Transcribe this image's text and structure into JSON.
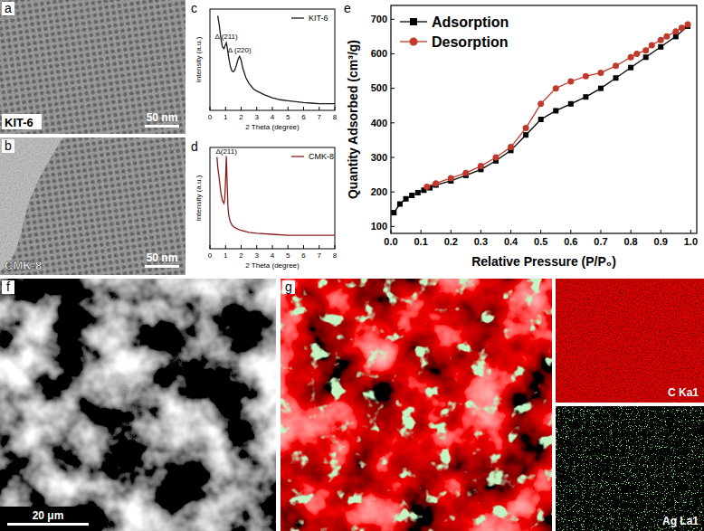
{
  "chart_data": [
    {
      "type": "line",
      "panel_label": "c",
      "x_label": "2 Theta (degree)",
      "y_label": "Intensity (a.u.)",
      "xlim": [
        0,
        8
      ],
      "xticks": [
        0,
        1,
        2,
        3,
        4,
        5,
        6,
        7,
        8
      ],
      "ylim": [
        0,
        105
      ],
      "tick_labels": "x",
      "legend": "upper right",
      "series": [
        {
          "name": "KIT-6",
          "color": "#1a1a1a",
          "x": [
            0.5,
            0.6,
            0.7,
            0.8,
            0.9,
            1.0,
            1.05,
            1.1,
            1.2,
            1.3,
            1.4,
            1.5,
            1.6,
            1.7,
            1.8,
            1.9,
            2.0,
            2.1,
            2.3,
            2.5,
            2.8,
            3.0,
            3.5,
            4,
            4.5,
            5,
            5.5,
            6,
            6.5,
            7,
            7.5,
            8
          ],
          "values": [
            98,
            88,
            75,
            66,
            64,
            68,
            70,
            66,
            55,
            46,
            41,
            40,
            42,
            47,
            53,
            56,
            52,
            44,
            34,
            28,
            22,
            20,
            16,
            13,
            11,
            10,
            9,
            8,
            7.5,
            7,
            7,
            7
          ]
        }
      ],
      "annotations": [
        {
          "text": "Δ (211)",
          "x": 1.05
        },
        {
          "text": "Δ (220)",
          "x": 1.9
        }
      ]
    },
    {
      "type": "line",
      "panel_label": "d",
      "x_label": "2 Theta (degree)",
      "y_label": "Intensity (a.u.)",
      "xlim": [
        0,
        8
      ],
      "xticks": [
        0,
        1,
        2,
        3,
        4,
        5,
        6,
        7,
        8
      ],
      "ylim": [
        0,
        105
      ],
      "tick_labels": "x",
      "legend": "upper right",
      "series": [
        {
          "name": "CMK-8",
          "color": "#8b1a1a",
          "x": [
            0.45,
            0.5,
            0.6,
            0.7,
            0.8,
            0.9,
            0.95,
            1.0,
            1.05,
            1.1,
            1.15,
            1.2,
            1.3,
            1.4,
            1.5,
            1.7,
            2.0,
            2.5,
            3,
            4,
            5,
            6,
            7,
            8
          ],
          "values": [
            95,
            85,
            72,
            58,
            50,
            47,
            52,
            70,
            96,
            70,
            45,
            35,
            28,
            25,
            23,
            21,
            19,
            17,
            16,
            15,
            14,
            14,
            14,
            14
          ]
        }
      ],
      "annotations": [
        {
          "text": "Δ(211)",
          "x": 1.05
        }
      ]
    },
    {
      "type": "line",
      "panel_label": "e",
      "x_label": "Relative Pressure (P/P₀)",
      "y_label": "Quantity Adsorbed (cm³/g)",
      "xlim": [
        0,
        1.02
      ],
      "ylim": [
        80,
        740
      ],
      "xticks": [
        {
          "value": 0,
          "label": "0.0"
        },
        {
          "value": 0.1,
          "label": "0.1"
        },
        {
          "value": 0.2,
          "label": "0.2"
        },
        {
          "value": 0.3,
          "label": "0.3"
        },
        {
          "value": 0.4,
          "label": "0.4"
        },
        {
          "value": 0.5,
          "label": "0.5"
        },
        {
          "value": 0.6,
          "label": "0.6"
        },
        {
          "value": 0.7,
          "label": "0.7"
        },
        {
          "value": 0.8,
          "label": "0.8"
        },
        {
          "value": 0.9,
          "label": "0.9"
        },
        {
          "value": 1,
          "label": "1.0"
        }
      ],
      "yticks": [
        100,
        200,
        300,
        400,
        500,
        600,
        700
      ],
      "legend": "upper left",
      "series": [
        {
          "name": "Adsorption",
          "color": "#000000",
          "marker": "square",
          "x": [
            0.01,
            0.03,
            0.05,
            0.07,
            0.09,
            0.11,
            0.13,
            0.15,
            0.2,
            0.25,
            0.3,
            0.35,
            0.4,
            0.45,
            0.5,
            0.55,
            0.6,
            0.65,
            0.7,
            0.75,
            0.8,
            0.85,
            0.9,
            0.95,
            0.99
          ],
          "values": [
            140,
            165,
            180,
            190,
            198,
            205,
            212,
            220,
            232,
            248,
            265,
            290,
            320,
            365,
            410,
            435,
            455,
            475,
            500,
            530,
            560,
            590,
            620,
            650,
            680
          ]
        },
        {
          "name": "Desorption",
          "color": "#c0392b",
          "marker": "circle",
          "x": [
            0.99,
            0.97,
            0.95,
            0.92,
            0.9,
            0.87,
            0.85,
            0.82,
            0.8,
            0.75,
            0.7,
            0.65,
            0.6,
            0.55,
            0.5,
            0.45,
            0.4,
            0.35,
            0.3,
            0.25,
            0.2,
            0.15,
            0.12
          ],
          "values": [
            685,
            675,
            665,
            650,
            640,
            625,
            610,
            600,
            590,
            565,
            545,
            535,
            520,
            500,
            455,
            385,
            330,
            300,
            275,
            255,
            240,
            225,
            215
          ]
        }
      ]
    }
  ],
  "images": {
    "a": {
      "label": "a",
      "caption": "KIT-6",
      "scale_bar": "50 nm"
    },
    "b": {
      "label": "b",
      "caption": "CMK-8",
      "scale_bar": "50 nm"
    },
    "f": {
      "label": "f",
      "scale_bar": "20 μm"
    },
    "g": {
      "label": "g"
    },
    "c_map": {
      "caption": "C Ka1"
    },
    "ag_map": {
      "caption": "Ag La1"
    }
  }
}
